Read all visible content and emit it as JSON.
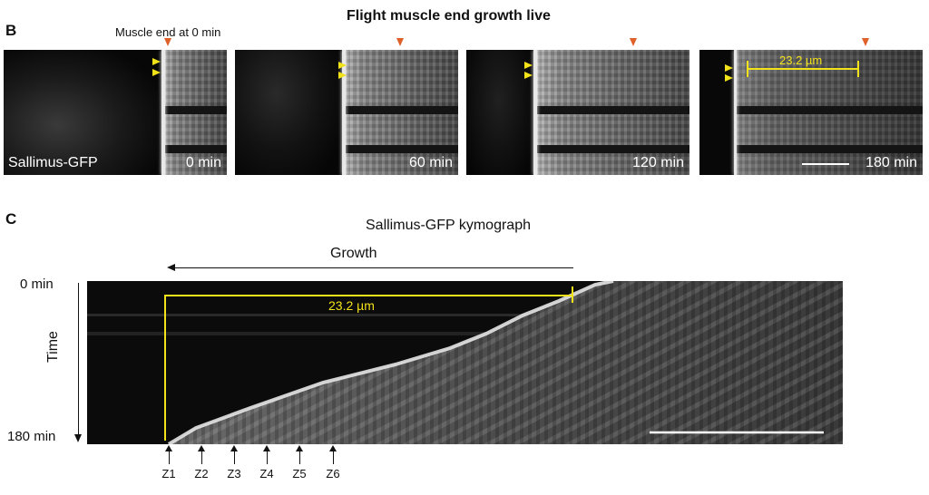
{
  "figure_title": "Flight muscle end growth live",
  "panel_b": {
    "letter": "B",
    "annotation": "Muscle end at 0 min",
    "marker_label": "Sallimus-GFP",
    "frames": [
      {
        "time": "0 min"
      },
      {
        "time": "60 min"
      },
      {
        "time": "120 min"
      },
      {
        "time": "180 min"
      }
    ],
    "measurement": "23.2 µm"
  },
  "panel_c": {
    "letter": "C",
    "title": "Sallimus-GFP kymograph",
    "growth_label": "Growth",
    "time_start": "0 min",
    "time_end": "180 min",
    "time_axis_label": "Time",
    "measurement": "23.2 µm",
    "z_labels": [
      "Z1",
      "Z2",
      "Z3",
      "Z4",
      "Z5",
      "Z6"
    ]
  },
  "colors": {
    "yellow": "#f2e21a",
    "orange": "#e0602a",
    "scale_bar": "#ffffff"
  }
}
